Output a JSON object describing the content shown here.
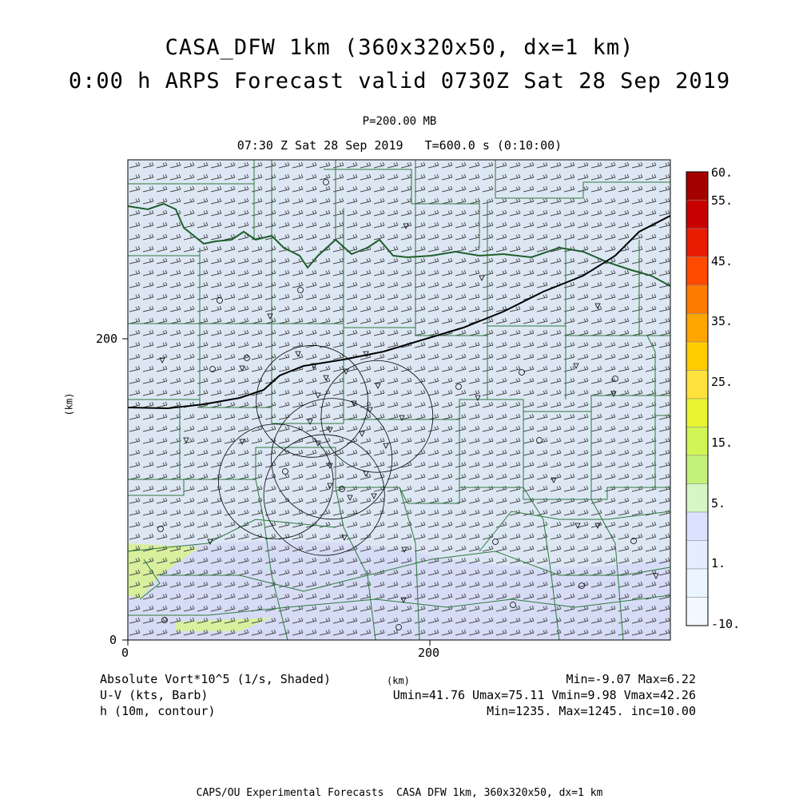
{
  "title": {
    "line1": "CASA_DFW 1km (360x320x50, dx=1 km)",
    "line2": "0:00 h ARPS Forecast valid 0730Z Sat 28 Sep 2019"
  },
  "subtitle": {
    "level": "P=200.00 MB",
    "time": "07:30 Z Sat 28 Sep 2019   T=600.0 s (0:10:00)"
  },
  "axes": {
    "x_ticks": [
      "0",
      "200"
    ],
    "y_ticks": [
      "0",
      "200"
    ],
    "x_label": "(km)",
    "y_label": "(km)"
  },
  "colorbar": {
    "labels": [
      "60.",
      "55.",
      "45.",
      "35.",
      "25.",
      "15.",
      "5.",
      "1.",
      "-10."
    ],
    "colors": [
      "#a50000",
      "#c80000",
      "#e81c00",
      "#ff4a00",
      "#ff7a00",
      "#ffa500",
      "#ffcc00",
      "#ffe23b",
      "#e8f530",
      "#d2f556",
      "#c2f27a",
      "#d4f7c4",
      "#dce1ff",
      "#e6ecff",
      "#ebf5ff",
      "#f2f8ff"
    ]
  },
  "legend": {
    "vort": "Absolute Vort*10^5 (1/s, Shaded)",
    "wind": "U-V (kts, Barb)",
    "height": "h (10m, contour)",
    "vort_range": "Min=-9.07 Max=6.22",
    "wind_range": "Umin=41.76 Umax=75.11 Vmin=9.98 Vmax=42.26",
    "height_range": "Min=1235. Max=1245. inc=10.00"
  },
  "footer": "CAPS/OU Experimental Forecasts  CASA DFW 1km, 360x320x50, dx=1 km",
  "map": {
    "domain_km": [
      0,
      360
    ],
    "radars": [
      {
        "x_km": 122,
        "y_km": 158,
        "r_km": 37
      },
      {
        "x_km": 165,
        "y_km": 148,
        "r_km": 37
      },
      {
        "x_km": 135,
        "y_km": 120,
        "r_km": 40
      },
      {
        "x_km": 98,
        "y_km": 105,
        "r_km": 38
      },
      {
        "x_km": 130,
        "y_km": 96,
        "r_km": 40
      }
    ]
  }
}
